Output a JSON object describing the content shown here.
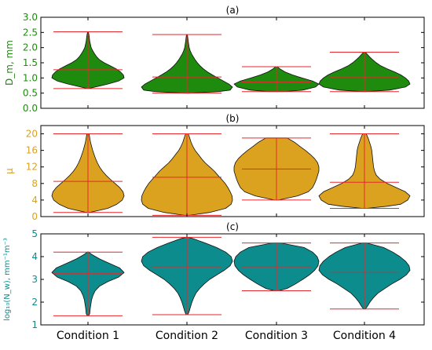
{
  "categories": [
    "Condition 1",
    "Condition 2",
    "Condition 3",
    "Condition 4"
  ],
  "chart_data": [
    {
      "type": "violin",
      "title": "(a)",
      "ylabel": "D_m, mm",
      "ylim": [
        0.0,
        3.0
      ],
      "yticks": [
        "0.0",
        "0.5",
        "1.0",
        "1.5",
        "2.0",
        "2.5",
        "3.0"
      ],
      "color": "#1e8a0e",
      "label_color": "#1e8a0e",
      "violins": [
        {
          "category": "Condition 1",
          "min": 0.65,
          "max": 2.52,
          "mean": 1.27,
          "profile": [
            [
              0.65,
              0.02
            ],
            [
              0.7,
              0.2
            ],
            [
              0.8,
              0.55
            ],
            [
              0.9,
              0.85
            ],
            [
              1.0,
              1.0
            ],
            [
              1.1,
              0.98
            ],
            [
              1.2,
              0.9
            ],
            [
              1.3,
              0.78
            ],
            [
              1.4,
              0.62
            ],
            [
              1.5,
              0.45
            ],
            [
              1.6,
              0.32
            ],
            [
              1.7,
              0.24
            ],
            [
              1.8,
              0.18
            ],
            [
              1.9,
              0.13
            ],
            [
              2.0,
              0.09
            ],
            [
              2.2,
              0.05
            ],
            [
              2.4,
              0.03
            ],
            [
              2.52,
              0.01
            ]
          ]
        },
        {
          "category": "Condition 2",
          "min": 0.5,
          "max": 2.43,
          "mean": 1.03,
          "profile": [
            [
              0.5,
              0.05
            ],
            [
              0.55,
              0.7
            ],
            [
              0.6,
              0.95
            ],
            [
              0.7,
              1.0
            ],
            [
              0.8,
              0.92
            ],
            [
              0.9,
              0.8
            ],
            [
              1.0,
              0.68
            ],
            [
              1.1,
              0.56
            ],
            [
              1.2,
              0.45
            ],
            [
              1.3,
              0.36
            ],
            [
              1.4,
              0.29
            ],
            [
              1.5,
              0.23
            ],
            [
              1.6,
              0.18
            ],
            [
              1.7,
              0.14
            ],
            [
              1.8,
              0.1
            ],
            [
              1.9,
              0.07
            ],
            [
              2.0,
              0.05
            ],
            [
              2.2,
              0.03
            ],
            [
              2.43,
              0.01
            ]
          ]
        },
        {
          "category": "Condition 3",
          "min": 0.55,
          "max": 1.37,
          "mean": 0.87,
          "profile": [
            [
              0.55,
              0.2
            ],
            [
              0.6,
              0.62
            ],
            [
              0.7,
              0.92
            ],
            [
              0.8,
              1.0
            ],
            [
              0.9,
              0.85
            ],
            [
              1.0,
              0.6
            ],
            [
              1.1,
              0.38
            ],
            [
              1.2,
              0.2
            ],
            [
              1.3,
              0.08
            ],
            [
              1.37,
              0.02
            ]
          ]
        },
        {
          "category": "Condition 4",
          "min": 0.55,
          "max": 1.85,
          "mean": 1.03,
          "profile": [
            [
              0.55,
              0.05
            ],
            [
              0.6,
              0.55
            ],
            [
              0.7,
              0.9
            ],
            [
              0.8,
              1.0
            ],
            [
              0.9,
              0.97
            ],
            [
              1.0,
              0.9
            ],
            [
              1.1,
              0.8
            ],
            [
              1.2,
              0.66
            ],
            [
              1.3,
              0.5
            ],
            [
              1.4,
              0.36
            ],
            [
              1.5,
              0.26
            ],
            [
              1.6,
              0.18
            ],
            [
              1.7,
              0.11
            ],
            [
              1.8,
              0.05
            ],
            [
              1.85,
              0.02
            ]
          ]
        }
      ]
    },
    {
      "type": "violin",
      "title": "(b)",
      "ylabel": "μ",
      "ylim": [
        0,
        22
      ],
      "yticks": [
        "0",
        "4",
        "8",
        "12",
        "16",
        "20"
      ],
      "color": "#dba21f",
      "label_color": "#dba21f",
      "violins": [
        {
          "category": "Condition 1",
          "min": 1.0,
          "max": 20.0,
          "mean": 8.5,
          "profile": [
            [
              1,
              0.05
            ],
            [
              2,
              0.55
            ],
            [
              3,
              0.8
            ],
            [
              4,
              0.95
            ],
            [
              5,
              1.0
            ],
            [
              6,
              0.97
            ],
            [
              7,
              0.88
            ],
            [
              8,
              0.75
            ],
            [
              9,
              0.62
            ],
            [
              10,
              0.5
            ],
            [
              11,
              0.4
            ],
            [
              12,
              0.32
            ],
            [
              13,
              0.26
            ],
            [
              14,
              0.21
            ],
            [
              15,
              0.17
            ],
            [
              16,
              0.13
            ],
            [
              17,
              0.1
            ],
            [
              18,
              0.07
            ],
            [
              19,
              0.05
            ],
            [
              20,
              0.03
            ]
          ]
        },
        {
          "category": "Condition 2",
          "min": 0.3,
          "max": 20.0,
          "mean": 9.5,
          "profile": [
            [
              0.3,
              0.05
            ],
            [
              1,
              0.5
            ],
            [
              2,
              0.85
            ],
            [
              3,
              0.97
            ],
            [
              4,
              1.0
            ],
            [
              5,
              0.99
            ],
            [
              6,
              0.95
            ],
            [
              7,
              0.9
            ],
            [
              8,
              0.84
            ],
            [
              9,
              0.76
            ],
            [
              10,
              0.68
            ],
            [
              11,
              0.6
            ],
            [
              12,
              0.5
            ],
            [
              13,
              0.4
            ],
            [
              14,
              0.32
            ],
            [
              15,
              0.25
            ],
            [
              16,
              0.18
            ],
            [
              17,
              0.13
            ],
            [
              18,
              0.09
            ],
            [
              19,
              0.06
            ],
            [
              20,
              0.03
            ]
          ]
        },
        {
          "category": "Condition 3",
          "min": 4.0,
          "max": 19.0,
          "mean": 11.5,
          "profile": [
            [
              4,
              0.05
            ],
            [
              5,
              0.5
            ],
            [
              6,
              0.75
            ],
            [
              7,
              0.85
            ],
            [
              8,
              0.9
            ],
            [
              9,
              0.94
            ],
            [
              10,
              0.97
            ],
            [
              11,
              1.0
            ],
            [
              12,
              1.0
            ],
            [
              13,
              0.97
            ],
            [
              14,
              0.9
            ],
            [
              15,
              0.8
            ],
            [
              16,
              0.68
            ],
            [
              17,
              0.55
            ],
            [
              18,
              0.42
            ],
            [
              19,
              0.25
            ]
          ]
        },
        {
          "category": "Condition 4",
          "min": 2.0,
          "max": 20.0,
          "mean": 8.3,
          "profile": [
            [
              2,
              0.05
            ],
            [
              2.5,
              0.5
            ],
            [
              3,
              0.8
            ],
            [
              4,
              0.95
            ],
            [
              5,
              1.0
            ],
            [
              6,
              0.9
            ],
            [
              7,
              0.7
            ],
            [
              8,
              0.5
            ],
            [
              9,
              0.35
            ],
            [
              10,
              0.26
            ],
            [
              11,
              0.22
            ],
            [
              12,
              0.2
            ],
            [
              13,
              0.19
            ],
            [
              14,
              0.18
            ],
            [
              15,
              0.17
            ],
            [
              16,
              0.16
            ],
            [
              17,
              0.14
            ],
            [
              18,
              0.11
            ],
            [
              19,
              0.08
            ],
            [
              20,
              0.04
            ]
          ]
        }
      ]
    },
    {
      "type": "violin",
      "title": "(c)",
      "ylabel": "log₁₀(N_w), mm⁻¹m⁻³",
      "ylim": [
        1,
        5
      ],
      "yticks": [
        "1",
        "2",
        "3",
        "4",
        "5"
      ],
      "color": "#0c8c8c",
      "label_color": "#0c8c8c",
      "violins": [
        {
          "category": "Condition 1",
          "min": 1.4,
          "max": 4.2,
          "mean": 3.25,
          "profile": [
            [
              1.4,
              0.02
            ],
            [
              1.5,
              0.05
            ],
            [
              1.7,
              0.06
            ],
            [
              1.9,
              0.08
            ],
            [
              2.1,
              0.1
            ],
            [
              2.3,
              0.14
            ],
            [
              2.5,
              0.2
            ],
            [
              2.7,
              0.32
            ],
            [
              2.9,
              0.55
            ],
            [
              3.1,
              0.85
            ],
            [
              3.3,
              1.0
            ],
            [
              3.5,
              0.88
            ],
            [
              3.7,
              0.6
            ],
            [
              3.9,
              0.32
            ],
            [
              4.1,
              0.1
            ],
            [
              4.2,
              0.02
            ]
          ]
        },
        {
          "category": "Condition 2",
          "min": 1.45,
          "max": 4.85,
          "mean": 3.55,
          "profile": [
            [
              1.45,
              0.02
            ],
            [
              1.6,
              0.05
            ],
            [
              1.8,
              0.08
            ],
            [
              2.0,
              0.11
            ],
            [
              2.2,
              0.15
            ],
            [
              2.4,
              0.2
            ],
            [
              2.6,
              0.28
            ],
            [
              2.8,
              0.38
            ],
            [
              3.0,
              0.5
            ],
            [
              3.2,
              0.66
            ],
            [
              3.4,
              0.82
            ],
            [
              3.6,
              0.95
            ],
            [
              3.8,
              1.0
            ],
            [
              4.0,
              0.97
            ],
            [
              4.2,
              0.85
            ],
            [
              4.4,
              0.65
            ],
            [
              4.6,
              0.4
            ],
            [
              4.8,
              0.12
            ],
            [
              4.85,
              0.02
            ]
          ]
        },
        {
          "category": "Condition 3",
          "min": 2.5,
          "max": 4.6,
          "mean": 3.55,
          "profile": [
            [
              2.5,
              0.05
            ],
            [
              2.6,
              0.25
            ],
            [
              2.8,
              0.45
            ],
            [
              3.0,
              0.62
            ],
            [
              3.2,
              0.78
            ],
            [
              3.4,
              0.9
            ],
            [
              3.6,
              0.98
            ],
            [
              3.8,
              1.0
            ],
            [
              4.0,
              0.96
            ],
            [
              4.2,
              0.85
            ],
            [
              4.4,
              0.65
            ],
            [
              4.6,
              0.1
            ]
          ]
        },
        {
          "category": "Condition 4",
          "min": 1.7,
          "max": 4.6,
          "mean": 3.3,
          "profile": [
            [
              1.7,
              0.02
            ],
            [
              1.8,
              0.06
            ],
            [
              2.0,
              0.12
            ],
            [
              2.2,
              0.2
            ],
            [
              2.4,
              0.3
            ],
            [
              2.6,
              0.45
            ],
            [
              2.8,
              0.6
            ],
            [
              3.0,
              0.78
            ],
            [
              3.2,
              0.92
            ],
            [
              3.4,
              1.0
            ],
            [
              3.6,
              0.98
            ],
            [
              3.8,
              0.9
            ],
            [
              4.0,
              0.78
            ],
            [
              4.2,
              0.62
            ],
            [
              4.4,
              0.42
            ],
            [
              4.6,
              0.05
            ]
          ]
        }
      ]
    }
  ]
}
